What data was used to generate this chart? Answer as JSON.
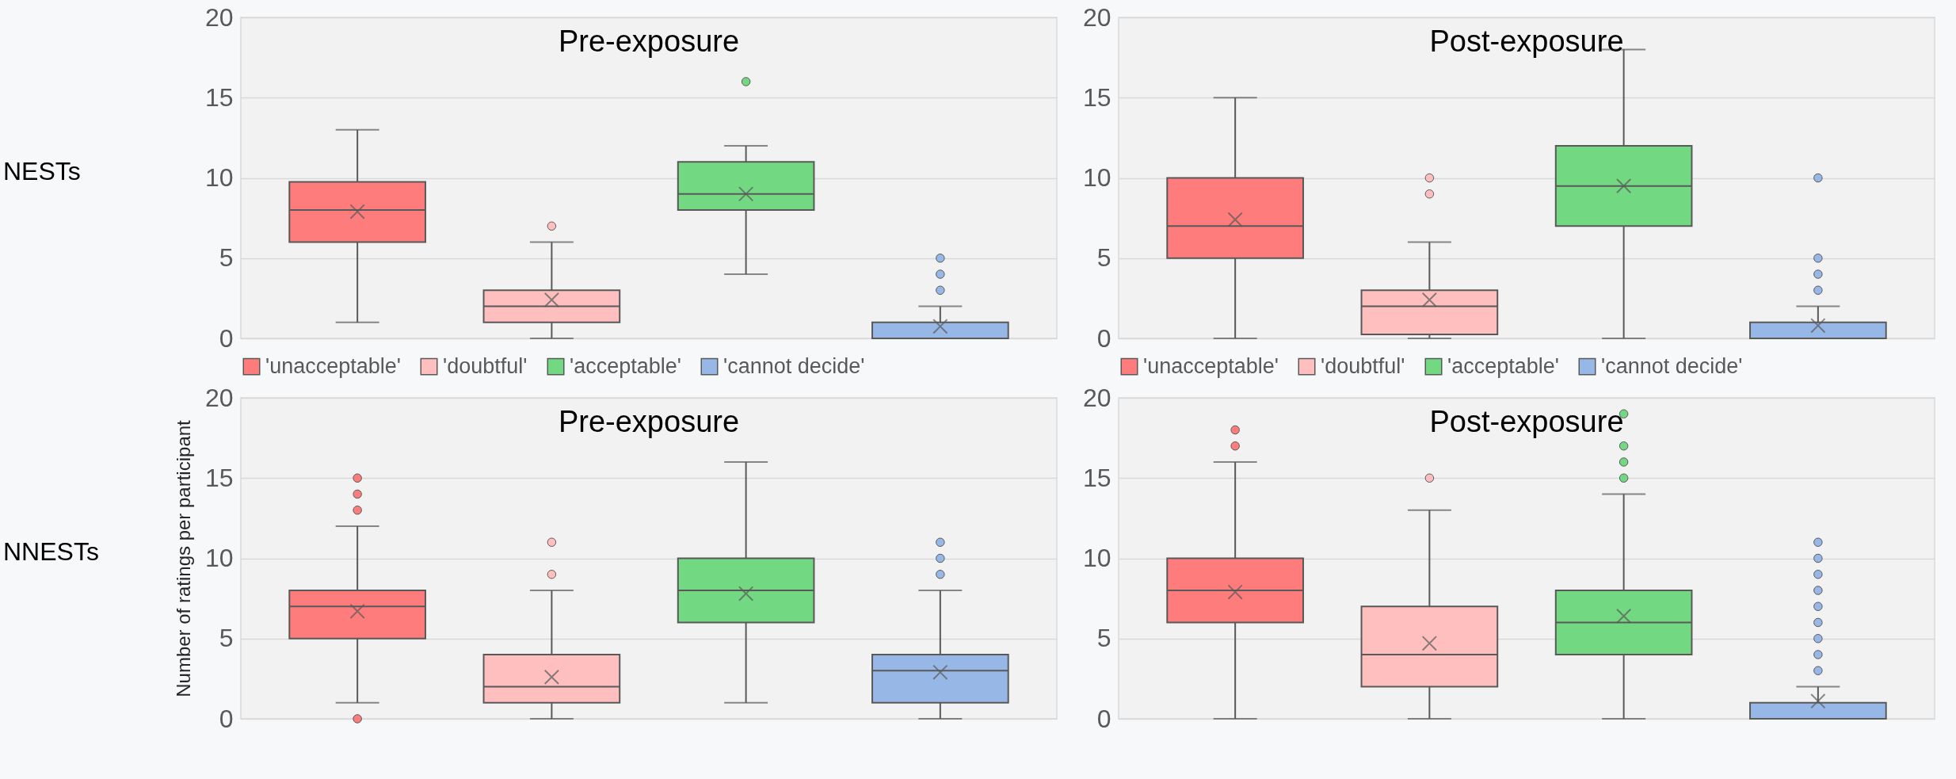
{
  "chart_data": [
    {
      "type": "box",
      "title": "Pre-exposure",
      "annotations": [
        "NESTs"
      ],
      "categories": [
        null,
        null,
        null,
        null
      ],
      "ylim": [
        0,
        20
      ],
      "yticks": [
        0,
        5,
        10,
        15,
        20
      ],
      "grid": "y",
      "legend": "bottom",
      "series": [
        {
          "name": "'unacceptable'",
          "color": "#ff7c7c",
          "boxes": [
            {
              "low": 1,
              "q1": 6,
              "median": 8,
              "q3": 9.75,
              "high": 13,
              "mean": 7.9
            },
            null,
            null,
            null
          ]
        },
        {
          "name": "'doubtful'",
          "color": "#ffbfbf",
          "boxes": [
            null,
            {
              "low": 0,
              "q1": 1,
              "median": 2,
              "q3": 3,
              "high": 6,
              "mean": 2.4,
              "outliers": [
                7
              ]
            },
            null,
            null
          ]
        },
        {
          "name": "'acceptable'",
          "color": "#72d982",
          "boxes": [
            null,
            null,
            {
              "low": 4,
              "q1": 8,
              "median": 9,
              "q3": 11,
              "high": 12,
              "mean": 9.0,
              "outliers": [
                16
              ]
            },
            null
          ]
        },
        {
          "name": "'cannot decide'",
          "color": "#97b8e6",
          "boxes": [
            null,
            null,
            null,
            {
              "low": 0,
              "q1": 0,
              "median": 0,
              "q3": 1,
              "high": 2,
              "mean": 0.75,
              "outliers": [
                3,
                4,
                5
              ]
            }
          ]
        }
      ]
    },
    {
      "type": "box",
      "title": "Post-exposure",
      "categories": [
        null,
        null,
        null,
        null
      ],
      "ylim": [
        0,
        20
      ],
      "yticks": [
        0,
        5,
        10,
        15,
        20
      ],
      "grid": "y",
      "legend": "bottom",
      "series": [
        {
          "name": "'unacceptable'",
          "color": "#ff7c7c",
          "boxes": [
            {
              "low": 0,
              "q1": 5,
              "median": 7,
              "q3": 10,
              "high": 15,
              "mean": 7.4
            },
            null,
            null,
            null
          ]
        },
        {
          "name": "'doubtful'",
          "color": "#ffbfbf",
          "boxes": [
            null,
            {
              "low": 0,
              "q1": 0.25,
              "median": 2,
              "q3": 3,
              "high": 6,
              "mean": 2.4,
              "outliers": [
                9,
                10
              ]
            },
            null,
            null
          ]
        },
        {
          "name": "'acceptable'",
          "color": "#72d982",
          "boxes": [
            null,
            null,
            {
              "low": 0,
              "q1": 7,
              "median": 9.5,
              "q3": 12,
              "high": 18,
              "mean": 9.5
            },
            null
          ]
        },
        {
          "name": "'cannot decide'",
          "color": "#97b8e6",
          "boxes": [
            null,
            null,
            null,
            {
              "low": 0,
              "q1": 0,
              "median": 0,
              "q3": 1,
              "high": 2,
              "mean": 0.8,
              "outliers": [
                3,
                4,
                5,
                10
              ]
            }
          ]
        }
      ]
    },
    {
      "type": "box",
      "title": "Pre-exposure",
      "ylabel": "Number of ratings per participant",
      "annotations": [
        "NNESTs"
      ],
      "categories": [
        null,
        null,
        null,
        null
      ],
      "ylim": [
        0,
        20
      ],
      "yticks": [
        0,
        5,
        10,
        15,
        20
      ],
      "grid": "y",
      "series": [
        {
          "color": "#ff7c7c",
          "boxes": [
            {
              "low": 1,
              "q1": 5,
              "median": 7,
              "q3": 8,
              "high": 12,
              "mean": 6.7,
              "outliers": [
                0,
                13,
                14,
                15
              ]
            },
            null,
            null,
            null
          ]
        },
        {
          "color": "#ffbfbf",
          "boxes": [
            null,
            {
              "low": 0,
              "q1": 1,
              "median": 2,
              "q3": 4,
              "high": 8,
              "mean": 2.6,
              "outliers": [
                9,
                11
              ]
            },
            null,
            null
          ]
        },
        {
          "color": "#72d982",
          "boxes": [
            null,
            null,
            {
              "low": 1,
              "q1": 6,
              "median": 8,
              "q3": 10,
              "high": 16,
              "mean": 7.8
            },
            null
          ]
        },
        {
          "color": "#97b8e6",
          "boxes": [
            null,
            null,
            null,
            {
              "low": 0,
              "q1": 1,
              "median": 3,
              "q3": 4,
              "high": 8,
              "mean": 2.9,
              "outliers": [
                9,
                10,
                11
              ]
            }
          ]
        }
      ]
    },
    {
      "type": "box",
      "title": "Post-exposure",
      "categories": [
        null,
        null,
        null,
        null
      ],
      "ylim": [
        0,
        20
      ],
      "yticks": [
        0,
        5,
        10,
        15,
        20
      ],
      "grid": "y",
      "series": [
        {
          "color": "#ff7c7c",
          "boxes": [
            {
              "low": 0,
              "q1": 6,
              "median": 8,
              "q3": 10,
              "high": 16,
              "mean": 7.9,
              "outliers": [
                17,
                18
              ]
            },
            null,
            null,
            null
          ]
        },
        {
          "color": "#ffbfbf",
          "boxes": [
            null,
            {
              "low": 0,
              "q1": 2,
              "median": 4,
              "q3": 7,
              "high": 13,
              "mean": 4.7,
              "outliers": [
                15
              ]
            },
            null,
            null
          ]
        },
        {
          "color": "#72d982",
          "boxes": [
            null,
            null,
            {
              "low": 0,
              "q1": 4,
              "median": 6,
              "q3": 8,
              "high": 14,
              "mean": 6.4,
              "outliers": [
                15,
                16,
                17,
                19
              ]
            },
            null
          ]
        },
        {
          "color": "#97b8e6",
          "boxes": [
            null,
            null,
            null,
            {
              "low": 0,
              "q1": 0,
              "median": 0,
              "q3": 1,
              "high": 2,
              "mean": 1.1,
              "outliers": [
                3,
                4,
                5,
                6,
                7,
                8,
                9,
                10,
                11
              ]
            }
          ]
        }
      ]
    }
  ]
}
